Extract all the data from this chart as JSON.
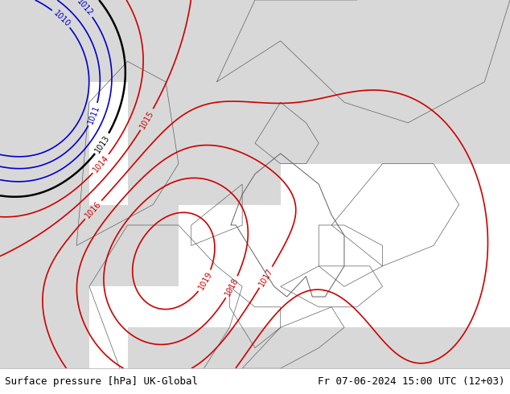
{
  "title_left": "Surface pressure [hPa] UK-Global",
  "title_right": "Fr 07-06-2024 15:00 UTC (12+03)",
  "background_color": "#c8f0a0",
  "land_color": "#c8f0a0",
  "sea_color": "#d8d8d8",
  "border_color": "#606060",
  "bottom_bar_color": "#ffffff",
  "bottom_text_color": "#000000",
  "isobar_red_color": "#cc0000",
  "isobar_blue_color": "#0000cc",
  "isobar_black_color": "#000000",
  "label_fontsize": 8,
  "title_fontsize": 9,
  "figsize": [
    6.34,
    4.9
  ],
  "dpi": 100
}
